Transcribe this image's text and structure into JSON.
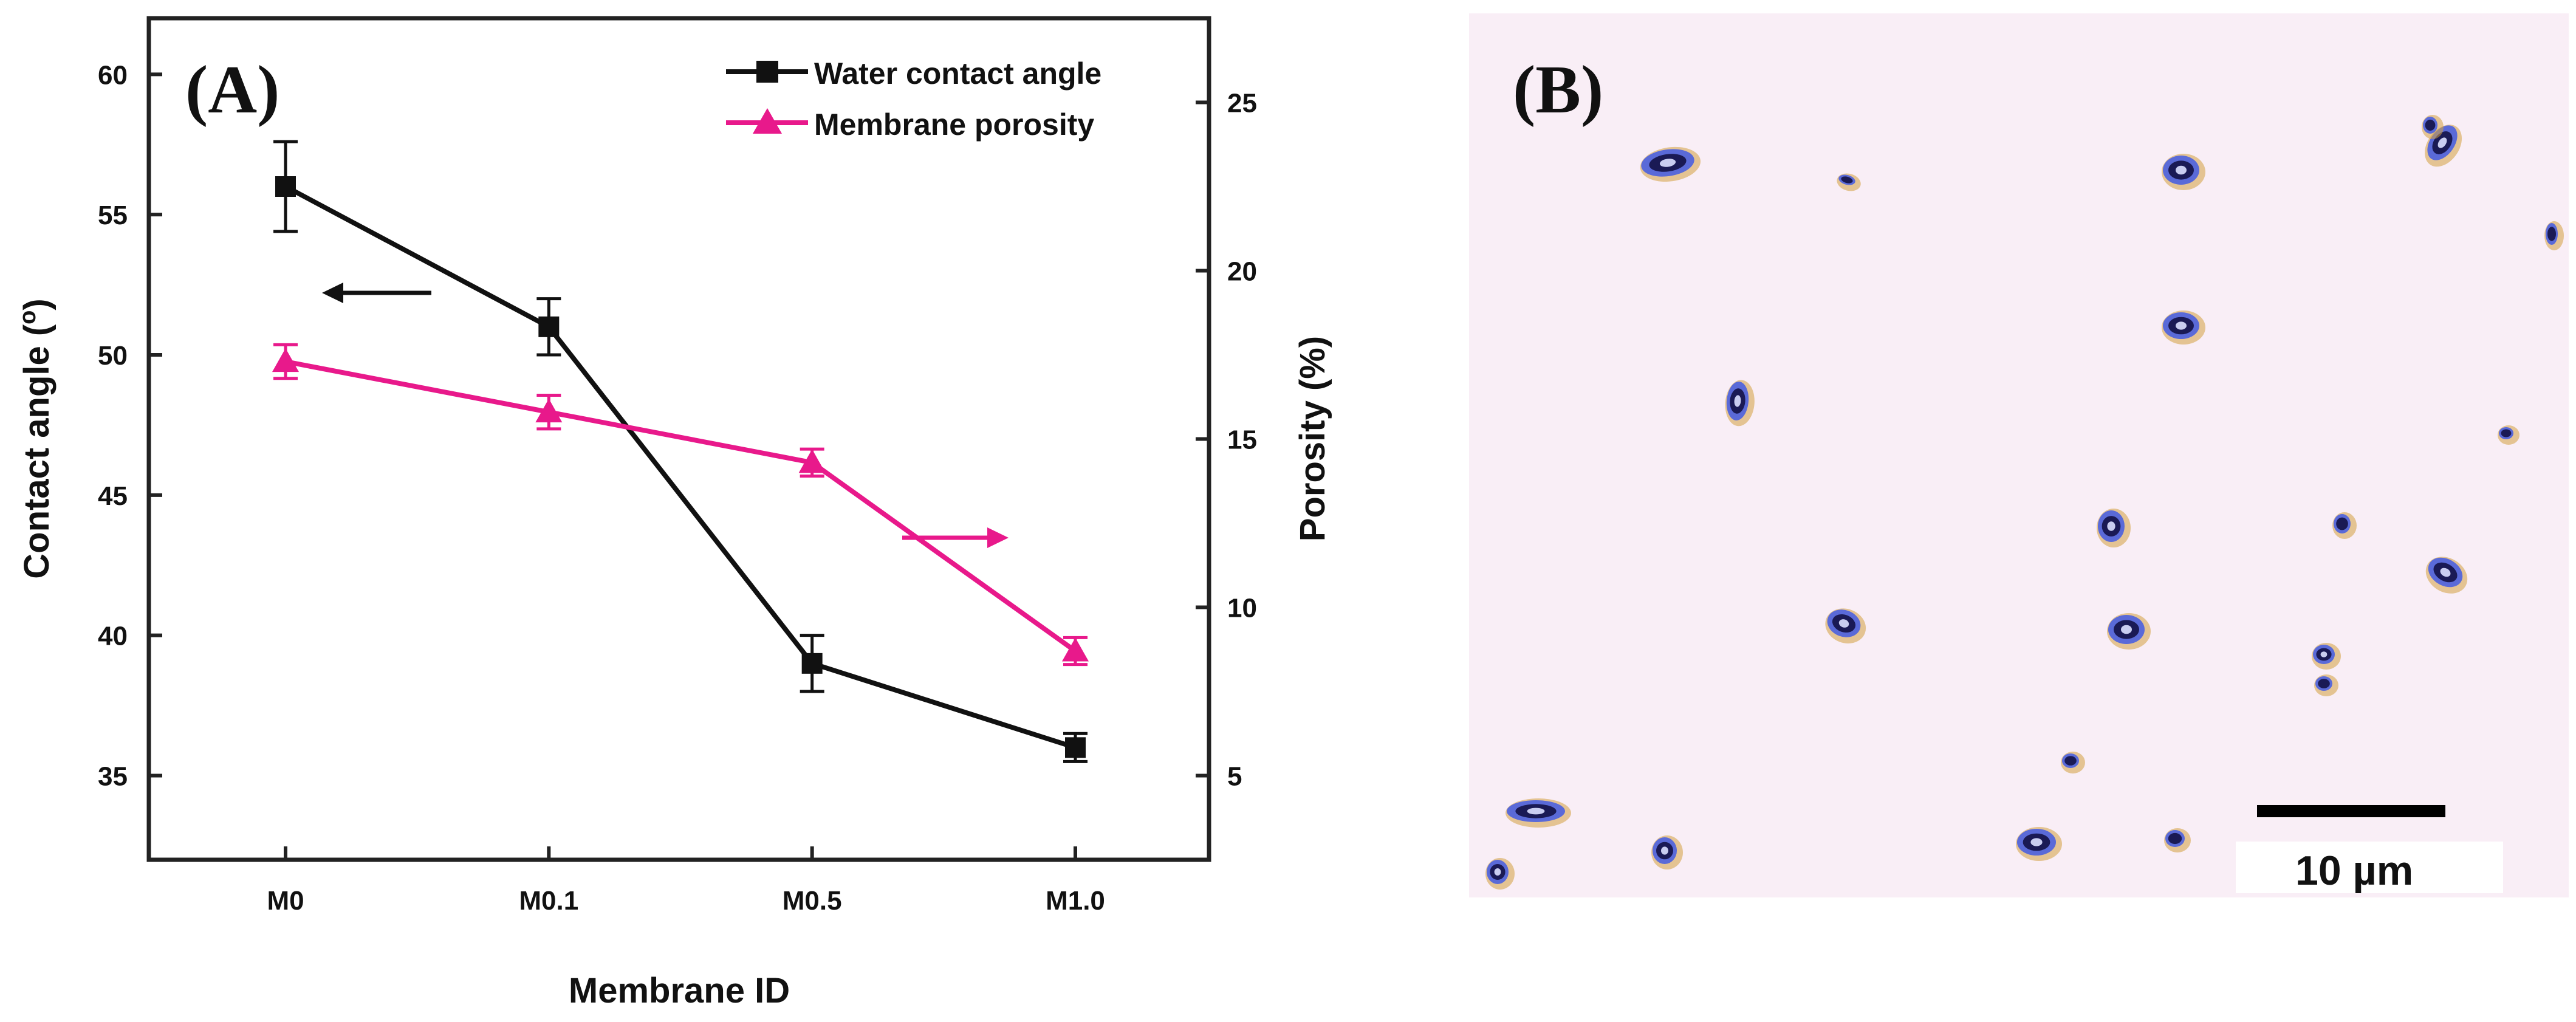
{
  "chart_data": {
    "type": "line",
    "title": "",
    "panel_label": "(A)",
    "xlabel": "Membrane ID",
    "ylabel_left": "Contact angle (°)",
    "ylabel_left_parts": [
      "Contact angle (",
      "o",
      ")"
    ],
    "ylabel_right": "Porosity (%)",
    "categories": [
      "M0",
      "M0.1",
      "M0.5",
      "M1.0"
    ],
    "ylim_left": [
      32,
      62
    ],
    "yticks_left": [
      35,
      40,
      45,
      50,
      55,
      60
    ],
    "ylim_right": [
      2.5,
      27.5
    ],
    "yticks_right": [
      5,
      10,
      15,
      20,
      25
    ],
    "series": [
      {
        "name": "Water contact angle",
        "axis": "left",
        "color": "#111111",
        "marker": "square",
        "values": [
          56,
          51,
          39,
          36
        ],
        "errors": [
          1.6,
          1.0,
          1.0,
          0.5
        ]
      },
      {
        "name": "Membrane porosity",
        "axis": "right",
        "color": "#e8198b",
        "marker": "triangle",
        "values": [
          17.3,
          15.8,
          14.3,
          8.7
        ],
        "errors": [
          0.5,
          0.5,
          0.4,
          0.4
        ]
      }
    ],
    "legend_position": "top-right",
    "annotations": [
      {
        "type": "arrow",
        "direction": "left",
        "series": "Water contact angle"
      },
      {
        "type": "arrow",
        "direction": "right",
        "series": "Membrane porosity"
      }
    ]
  },
  "micrograph": {
    "panel_label": "(B)",
    "scale_bar_label": "10 µm",
    "colors": {
      "background": "#f9eef6",
      "particle_dark": "#1a1a55",
      "particle_halo": "#5a6ad8",
      "particle_edge": "#d4a040"
    }
  }
}
